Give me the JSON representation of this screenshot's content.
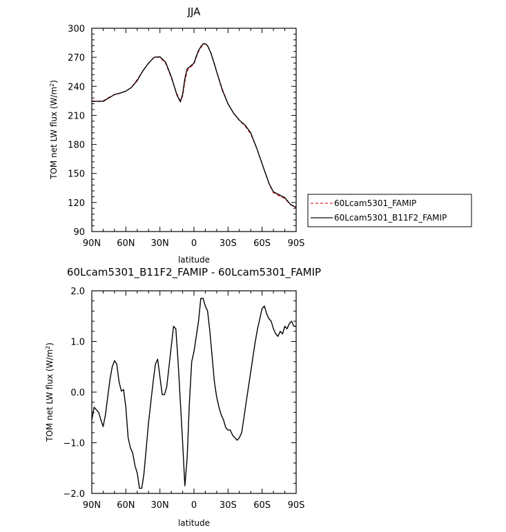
{
  "chart_data": [
    {
      "type": "line",
      "title": "JJA",
      "xlabel": "latitude",
      "ylabel": "TOM net LW flux (W/m²)",
      "ylabel_unit_prefix": "TOM net LW flux (W/m",
      "ylabel_sup": "2",
      "ylabel_unit_suffix": ")",
      "xlim": [
        90,
        -90
      ],
      "ylim": [
        90,
        300
      ],
      "xticks": [
        90,
        60,
        30,
        0,
        -30,
        -60,
        -90
      ],
      "xtick_labels": [
        "90N",
        "60N",
        "30N",
        "0",
        "30S",
        "60S",
        "90S"
      ],
      "yticks": [
        90,
        120,
        150,
        180,
        210,
        240,
        270,
        300
      ],
      "ytick_labels": [
        "90",
        "120",
        "150",
        "180",
        "210",
        "240",
        "270",
        "300"
      ],
      "legend_placement": "right-bottom outside",
      "series": [
        {
          "name": "60Lcam5301_FAMIP",
          "color": "#e8242a",
          "dash": "dashed",
          "x": [
            90,
            85,
            80,
            75,
            70,
            65,
            60,
            55,
            50,
            45,
            40,
            35,
            30,
            25,
            20,
            15,
            12,
            10,
            8,
            6,
            4,
            2,
            0,
            -2,
            -4,
            -6,
            -8,
            -10,
            -12,
            -15,
            -18,
            -20,
            -25,
            -30,
            -35,
            -40,
            -45,
            -50,
            -55,
            -60,
            -63,
            -66,
            -70,
            -75,
            -80,
            -85,
            -90
          ],
          "y": [
            225,
            224.5,
            225,
            228.5,
            231.5,
            233,
            235,
            239,
            247,
            256,
            264,
            270,
            270,
            264,
            249,
            232,
            225,
            230,
            245,
            256,
            259,
            261,
            263,
            270,
            276,
            280,
            283,
            284,
            282,
            274,
            263,
            255,
            237,
            222,
            212,
            205,
            199,
            191,
            177,
            160,
            150,
            140,
            130,
            127,
            124,
            118,
            114
          ]
        },
        {
          "name": "60Lcam5301_B11F2_FAMIP",
          "color": "#000000",
          "dash": "solid",
          "x": [
            90,
            85,
            80,
            75,
            70,
            65,
            60,
            55,
            50,
            45,
            40,
            35,
            30,
            25,
            20,
            15,
            12,
            10,
            8,
            6,
            4,
            2,
            0,
            -2,
            -4,
            -6,
            -8,
            -10,
            -12,
            -15,
            -18,
            -20,
            -25,
            -30,
            -35,
            -40,
            -45,
            -50,
            -55,
            -60,
            -63,
            -66,
            -70,
            -75,
            -80,
            -85,
            -90
          ],
          "y": [
            224.5,
            224.5,
            224.5,
            228,
            231.5,
            233,
            235,
            239,
            246,
            256,
            264,
            270,
            270.5,
            265,
            250,
            231,
            224,
            232,
            248,
            258,
            260,
            262,
            264,
            271,
            277,
            281,
            284,
            284,
            282,
            274,
            263,
            255,
            236,
            222,
            212,
            205,
            200,
            192,
            177,
            160,
            150,
            140,
            131,
            128,
            125,
            118,
            115
          ]
        }
      ]
    },
    {
      "type": "line",
      "title": "60Lcam5301_B11F2_FAMIP - 60Lcam5301_FAMIP",
      "xlabel": "latitude",
      "ylabel": "TOM net LW flux (W/m²)",
      "ylabel_unit_prefix": "TOM net LW flux (W/m",
      "ylabel_sup": "2",
      "ylabel_unit_suffix": ")",
      "xlim": [
        90,
        -90
      ],
      "ylim": [
        -2.0,
        2.0
      ],
      "xticks": [
        90,
        60,
        30,
        0,
        -30,
        -60,
        -90
      ],
      "xtick_labels": [
        "90N",
        "60N",
        "30N",
        "0",
        "30S",
        "60S",
        "90S"
      ],
      "yticks": [
        -2.0,
        -1.0,
        0.0,
        1.0,
        2.0
      ],
      "ytick_labels": [
        "−2.0",
        "−1.0",
        "0.0",
        "1.0",
        "2.0"
      ],
      "series": [
        {
          "color": "#000000",
          "x": [
            90,
            88,
            86,
            84,
            82,
            80,
            78,
            76,
            74,
            72,
            70,
            68,
            66,
            64,
            62,
            60,
            58,
            56,
            54,
            52,
            50,
            48,
            46,
            44,
            42,
            40,
            38,
            36,
            34,
            32,
            30,
            28,
            26,
            24,
            22,
            20,
            18,
            16,
            14,
            12,
            10,
            8,
            6,
            4,
            2,
            0,
            -2,
            -4,
            -6,
            -8,
            -10,
            -12,
            -14,
            -16,
            -18,
            -20,
            -22,
            -24,
            -26,
            -28,
            -30,
            -32,
            -34,
            -36,
            -38,
            -40,
            -42,
            -44,
            -46,
            -48,
            -50,
            -52,
            -54,
            -56,
            -58,
            -60,
            -62,
            -64,
            -66,
            -68,
            -70,
            -72,
            -74,
            -76,
            -78,
            -80,
            -82,
            -84,
            -86,
            -88,
            -90
          ],
          "y": [
            -0.55,
            -0.3,
            -0.35,
            -0.4,
            -0.55,
            -0.68,
            -0.45,
            -0.1,
            0.25,
            0.5,
            0.62,
            0.55,
            0.2,
            0.02,
            0.05,
            -0.3,
            -0.9,
            -1.1,
            -1.2,
            -1.45,
            -1.6,
            -1.9,
            -1.9,
            -1.6,
            -1.1,
            -0.6,
            -0.2,
            0.2,
            0.55,
            0.65,
            0.3,
            -0.05,
            -0.05,
            0.1,
            0.5,
            0.9,
            1.3,
            1.25,
            0.6,
            -0.2,
            -1.0,
            -1.85,
            -1.3,
            -0.2,
            0.6,
            0.8,
            1.1,
            1.4,
            1.85,
            1.85,
            1.7,
            1.6,
            1.2,
            0.7,
            0.2,
            -0.1,
            -0.3,
            -0.45,
            -0.55,
            -0.7,
            -0.75,
            -0.75,
            -0.85,
            -0.9,
            -0.95,
            -0.9,
            -0.8,
            -0.5,
            -0.2,
            0.1,
            0.4,
            0.7,
            1.0,
            1.25,
            1.45,
            1.65,
            1.7,
            1.55,
            1.45,
            1.4,
            1.25,
            1.15,
            1.1,
            1.2,
            1.15,
            1.3,
            1.25,
            1.35,
            1.4,
            1.3,
            1.3
          ]
        }
      ]
    }
  ]
}
